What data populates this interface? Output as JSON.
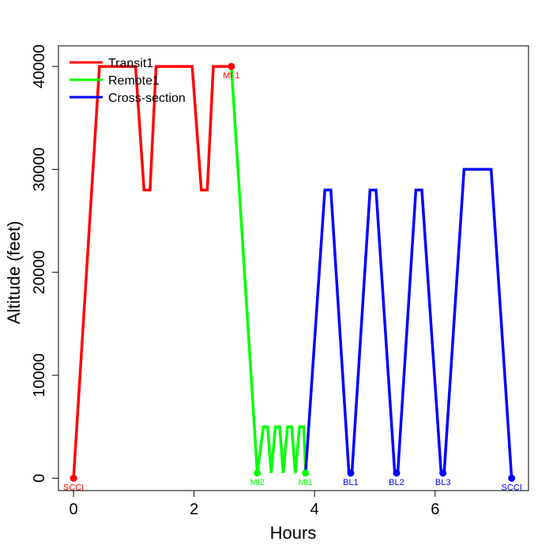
{
  "chart_data": {
    "type": "line",
    "title": "",
    "xlabel": "Hours",
    "ylabel": "Altitude (feet)",
    "xlim": [
      -0.25,
      7.55
    ],
    "ylim": [
      -1200,
      42000
    ],
    "xticks": [
      0,
      2,
      4,
      6
    ],
    "yticks": [
      0,
      10000,
      20000,
      30000,
      40000
    ],
    "grid": false,
    "legend_position": "top-left",
    "series": [
      {
        "name": "Transit1",
        "color": "#ff0000",
        "x": [
          0,
          0.43,
          1.03,
          1.17,
          1.27,
          1.37,
          1.97,
          2.12,
          2.22,
          2.32,
          2.62
        ],
        "y": [
          0,
          40000,
          40000,
          28000,
          28000,
          40000,
          40000,
          28000,
          28000,
          40000,
          40000
        ]
      },
      {
        "name": "Remote1",
        "color": "#00ff00",
        "x": [
          2.62,
          3.05,
          3.15,
          3.22,
          3.28,
          3.35,
          3.42,
          3.48,
          3.55,
          3.62,
          3.68,
          3.75,
          3.82,
          3.85
        ],
        "y": [
          40000,
          500,
          5000,
          5000,
          500,
          5000,
          5000,
          500,
          5000,
          5000,
          500,
          5000,
          5000,
          500
        ]
      },
      {
        "name": "Cross-section",
        "color": "#0000ff",
        "x": [
          3.85,
          4.17,
          4.27,
          4.57,
          4.62,
          4.92,
          5.02,
          5.33,
          5.38,
          5.68,
          5.78,
          6.1,
          6.15,
          6.48,
          6.93,
          7.27
        ],
        "y": [
          500,
          28000,
          28000,
          500,
          500,
          28000,
          28000,
          500,
          500,
          28000,
          28000,
          500,
          500,
          30000,
          30000,
          0
        ]
      }
    ],
    "markers": [
      {
        "label": "SCCI",
        "x": 0,
        "y": 0,
        "color": "#ff0000",
        "label_pos": "below"
      },
      {
        "label": "MI 1",
        "x": 2.62,
        "y": 40000,
        "color": "#ff0000",
        "label_pos": "below"
      },
      {
        "label": "MI2",
        "x": 3.05,
        "y": 500,
        "color": "#00ff00",
        "label_pos": "below"
      },
      {
        "label": "MI1",
        "x": 3.85,
        "y": 500,
        "color": "#00ff00",
        "label_pos": "below"
      },
      {
        "label": "BL1",
        "x": 4.6,
        "y": 500,
        "color": "#0000ff",
        "label_pos": "below"
      },
      {
        "label": "BL2",
        "x": 5.36,
        "y": 500,
        "color": "#0000ff",
        "label_pos": "below"
      },
      {
        "label": "BL3",
        "x": 6.13,
        "y": 500,
        "color": "#0000ff",
        "label_pos": "below"
      },
      {
        "label": "SCCI",
        "x": 7.27,
        "y": 0,
        "color": "#0000ff",
        "label_pos": "below"
      }
    ]
  }
}
